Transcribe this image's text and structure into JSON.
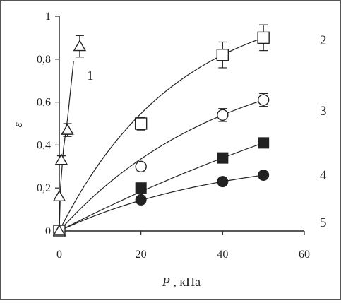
{
  "chart_data": {
    "type": "scatter",
    "title": "",
    "xlabel": {
      "var": "P",
      "unit": " , кПа"
    },
    "ylabel": "ε",
    "xlim": [
      0,
      60
    ],
    "ylim": [
      0,
      1
    ],
    "x_ticks": [
      "0",
      "20",
      "40",
      "60"
    ],
    "y_ticks": [
      "0",
      "0,2",
      "0,4",
      "0,6",
      "0,8",
      "1"
    ],
    "grid": false,
    "legend": "none",
    "series": [
      {
        "label": "1",
        "marker": "triangle-open",
        "x": [
          0,
          0,
          0.5,
          2,
          5
        ],
        "y": [
          0,
          0.16,
          0.33,
          0.47,
          0.86
        ],
        "err": [
          0,
          0,
          0.02,
          0.03,
          0.05
        ],
        "fit_end": [
          3.5,
          0.79
        ]
      },
      {
        "label": "2",
        "marker": "square-open",
        "x": [
          0,
          20,
          40,
          50
        ],
        "y": [
          0,
          0.5,
          0.82,
          0.9
        ],
        "err": [
          0,
          0.03,
          0.06,
          0.06
        ]
      },
      {
        "label": "3",
        "marker": "circle-open",
        "x": [
          0,
          20,
          40,
          50
        ],
        "y": [
          0,
          0.3,
          0.54,
          0.61
        ],
        "err": [
          0,
          0.02,
          0.03,
          0.03
        ]
      },
      {
        "label": "4",
        "marker": "square-filled",
        "x": [
          0,
          20,
          40,
          50
        ],
        "y": [
          0,
          0.2,
          0.34,
          0.41
        ],
        "err": [
          0,
          0,
          0,
          0
        ]
      },
      {
        "label": "5",
        "marker": "circle-filled",
        "x": [
          0,
          20,
          40,
          50
        ],
        "y": [
          0,
          0.145,
          0.23,
          0.26
        ],
        "err": [
          0,
          0,
          0,
          0
        ]
      }
    ],
    "colors": {
      "ink": "#222222",
      "frame": "#555555",
      "background": "#ffffff"
    }
  }
}
